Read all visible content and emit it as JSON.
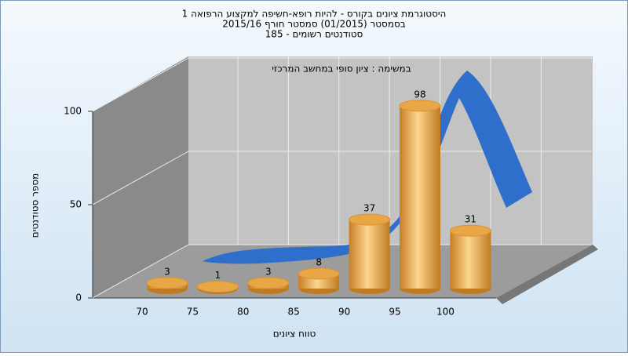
{
  "chart_data": {
    "type": "bar",
    "title_lines": [
      "היסטוגרמת ציונים בקורס - להיות רופא-חשיפה למקצוע הרפואה 1",
      "בסמסטר  (01/2015)  סמסטר חורף 2015/16",
      "185 - סטודנטים רשומים"
    ],
    "subtitle": "במשימה : ציון סופי במחשב המרכזי",
    "x_label": "טווח ציונים",
    "y_label": "מספר סטודנטים",
    "categories": [
      "70",
      "75",
      "80",
      "85",
      "90",
      "95",
      "100"
    ],
    "values": [
      3,
      1,
      3,
      8,
      37,
      98,
      31
    ],
    "color": "#e8a646",
    "ylim": [
      0,
      100
    ],
    "yticks": [
      0,
      50,
      100
    ],
    "grid": true
  }
}
